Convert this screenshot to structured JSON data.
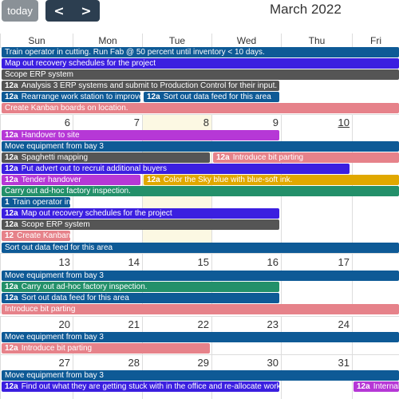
{
  "toolbar": {
    "today_label": "today",
    "prev_label": "<",
    "next_label": ">",
    "title": "March 2022"
  },
  "dow": [
    "Sun",
    "Mon",
    "Tue",
    "Wed",
    "Thu",
    "Fri"
  ],
  "day_numbers": {
    "w2": [
      "6",
      "7",
      "8",
      "9",
      "10"
    ],
    "w3": [
      "13",
      "14",
      "15",
      "16",
      "17"
    ],
    "w4": [
      "20",
      "21",
      "22",
      "23",
      "24"
    ],
    "w5": [
      "27",
      "28",
      "29",
      "30",
      "31"
    ]
  },
  "colors": {
    "darkblue": "#0e5a96",
    "indigo": "#3b1fe0",
    "gray": "#555555",
    "salmon": "#e6828a",
    "purple": "#b638d6",
    "teal": "#23906a",
    "gold": "#e0a800"
  },
  "events": {
    "e1": {
      "time": "",
      "title": "Train operator in cutting. Run Fab @ 50 percent until inventory < 10 days."
    },
    "e2": {
      "time": "",
      "title": "Map out recovery schedules for the project"
    },
    "e3": {
      "time": "",
      "title": "Scope ERP system"
    },
    "e4": {
      "time": "12a",
      "title": "Analysis 3 ERP systems and submit to Production Control for their input."
    },
    "e5": {
      "time": "12a",
      "title": "Rearrange work station to improve"
    },
    "e6": {
      "time": "12a",
      "title": "Sort out data feed for this area"
    },
    "e7": {
      "time": "",
      "title": "Create Kanban boards on location."
    },
    "e8": {
      "time": "12a",
      "title": "Handover to site"
    },
    "e9": {
      "time": "",
      "title": "Move equipment from bay 3"
    },
    "e10": {
      "time": "12a",
      "title": "Spaghetti mapping"
    },
    "e11": {
      "time": "12a",
      "title": "Introduce bit parting"
    },
    "e12": {
      "time": "12a",
      "title": "Put advert out to recruit additional buyers"
    },
    "e13": {
      "time": "12a",
      "title": "Tender handover"
    },
    "e14": {
      "time": "12a",
      "title": "Color the Sky blue with blue-soft ink."
    },
    "e15": {
      "time": "",
      "title": "Carry out ad-hoc factory inspection."
    },
    "e16": {
      "time": "1",
      "title": "Train operator in c"
    },
    "e17": {
      "time": "12a",
      "title": "Map out recovery schedules for the project"
    },
    "e18": {
      "time": "12a",
      "title": "Scope ERP system"
    },
    "e19": {
      "time": "12",
      "title": "Create Kanban b"
    },
    "e20": {
      "time": "",
      "title": "Sort out data feed for this area"
    },
    "e21": {
      "time": "",
      "title": "Move equipment from bay 3"
    },
    "e22": {
      "time": "12a",
      "title": "Carry out ad-hoc factory inspection."
    },
    "e23": {
      "time": "12a",
      "title": "Sort out data feed for this area"
    },
    "e24": {
      "time": "",
      "title": "Introduce bit parting"
    },
    "e25": {
      "time": "",
      "title": "Move equipment from bay 3"
    },
    "e26": {
      "time": "12a",
      "title": "Introduce bit parting"
    },
    "e27": {
      "time": "",
      "title": "Move equipment from bay 3"
    },
    "e28": {
      "time": "12a",
      "title": "Find out what they are getting stuck with in the office and re-allocate work"
    },
    "e29": {
      "time": "12a",
      "title": "Internal"
    }
  }
}
